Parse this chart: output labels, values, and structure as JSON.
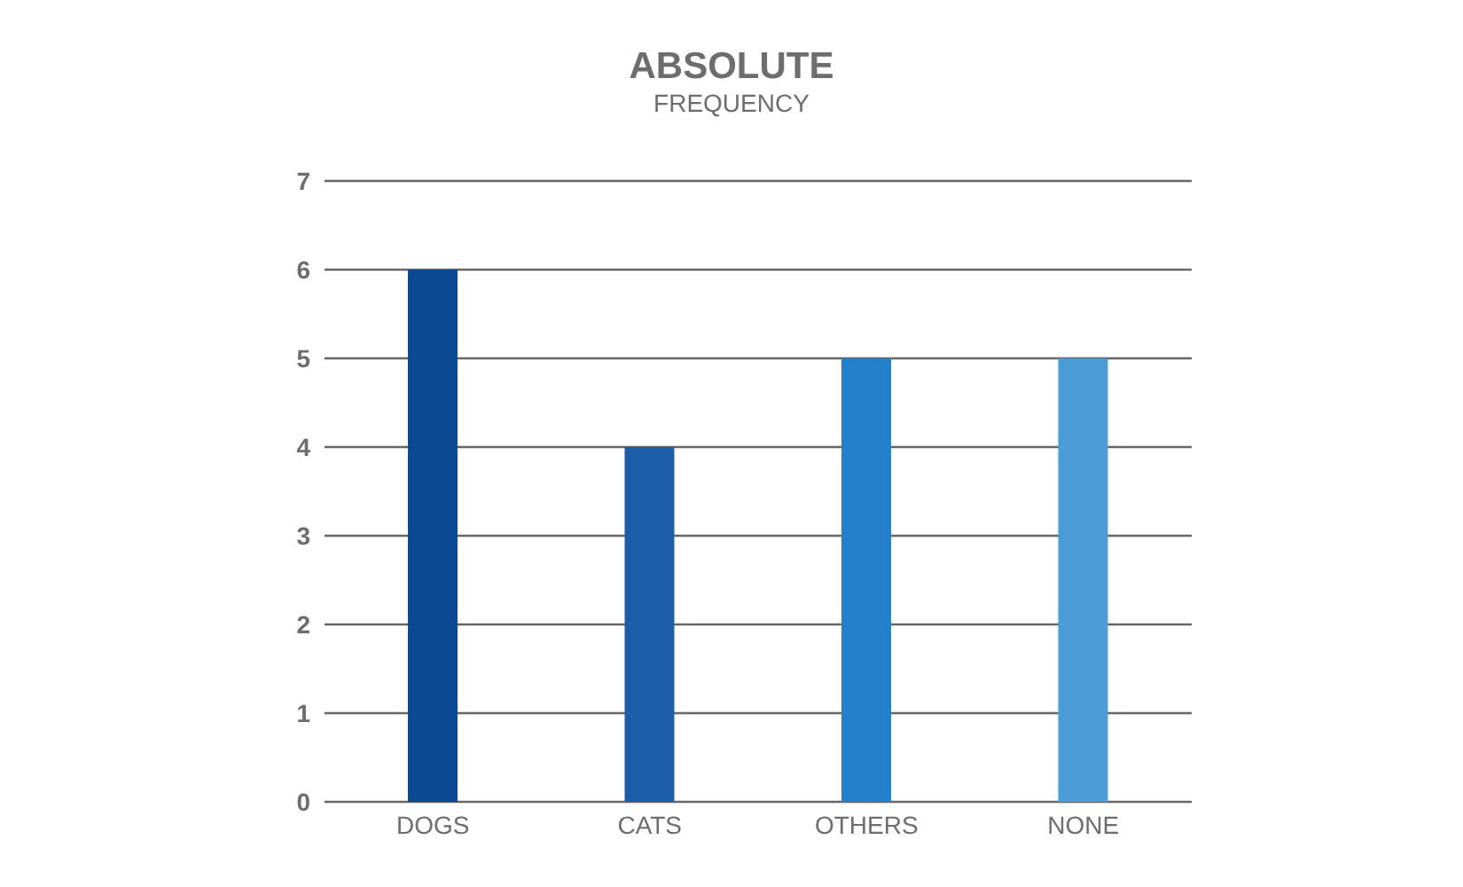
{
  "chart_data": {
    "type": "bar",
    "title": "ABSOLUTE",
    "subtitle": "FREQUENCY",
    "categories": [
      "DOGS",
      "CATS",
      "OTHERS",
      "NONE"
    ],
    "values": [
      6,
      4,
      5,
      5
    ],
    "colors": [
      "#0a4a93",
      "#1c5ea8",
      "#2380c8",
      "#4b9bd8"
    ],
    "ylim": [
      0,
      7
    ],
    "yticks": [
      0,
      1,
      2,
      3,
      4,
      5,
      6,
      7
    ],
    "grid": "y"
  }
}
